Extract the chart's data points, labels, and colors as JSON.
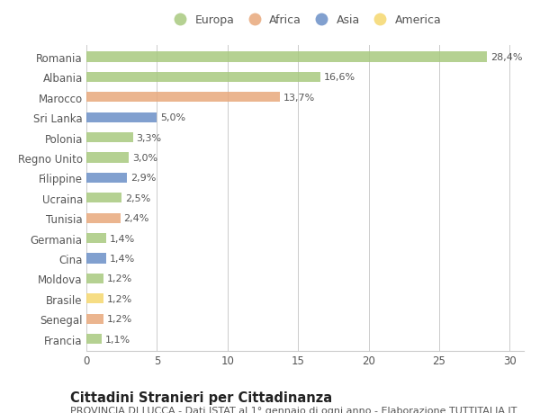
{
  "categories": [
    "Francia",
    "Senegal",
    "Brasile",
    "Moldova",
    "Cina",
    "Germania",
    "Tunisia",
    "Ucraina",
    "Filippine",
    "Regno Unito",
    "Polonia",
    "Sri Lanka",
    "Marocco",
    "Albania",
    "Romania"
  ],
  "values": [
    1.1,
    1.2,
    1.2,
    1.2,
    1.4,
    1.4,
    2.4,
    2.5,
    2.9,
    3.0,
    3.3,
    5.0,
    13.7,
    16.6,
    28.4
  ],
  "labels": [
    "1,1%",
    "1,2%",
    "1,2%",
    "1,2%",
    "1,4%",
    "1,4%",
    "2,4%",
    "2,5%",
    "2,9%",
    "3,0%",
    "3,3%",
    "5,0%",
    "13,7%",
    "16,6%",
    "28,4%"
  ],
  "colors": [
    "#a8c97f",
    "#e8a87c",
    "#f5d76e",
    "#a8c97f",
    "#6b8fc7",
    "#a8c97f",
    "#e8a87c",
    "#a8c97f",
    "#6b8fc7",
    "#a8c97f",
    "#a8c97f",
    "#6b8fc7",
    "#e8a87c",
    "#a8c97f",
    "#a8c97f"
  ],
  "legend": [
    {
      "label": "Europa",
      "color": "#a8c97f"
    },
    {
      "label": "Africa",
      "color": "#e8a87c"
    },
    {
      "label": "Asia",
      "color": "#6b8fc7"
    },
    {
      "label": "America",
      "color": "#f5d76e"
    }
  ],
  "title": "Cittadini Stranieri per Cittadinanza",
  "subtitle": "PROVINCIA DI LUCCA - Dati ISTAT al 1° gennaio di ogni anno - Elaborazione TUTTITALIA.IT",
  "xlim": [
    0,
    31
  ],
  "xticks": [
    0,
    5,
    10,
    15,
    20,
    25,
    30
  ],
  "background_color": "#ffffff",
  "grid_color": "#cccccc",
  "bar_height": 0.5,
  "title_fontsize": 10.5,
  "subtitle_fontsize": 8,
  "label_fontsize": 8,
  "tick_fontsize": 8.5,
  "legend_fontsize": 9
}
